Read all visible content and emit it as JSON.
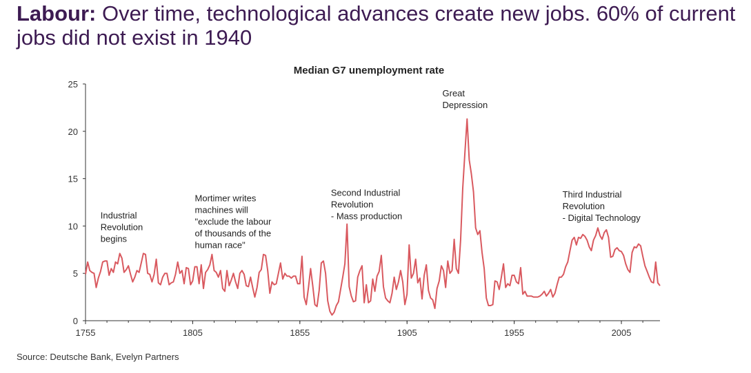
{
  "headline": {
    "prefix": "Labour:",
    "text": "Over time, technological advances create new jobs. 60% of current jobs did not exist in 1940"
  },
  "source": "Source: Deutsche Bank, Evelyn Partners",
  "colors": {
    "line": "#d9595f",
    "headline": "#3d1b52",
    "axis": "#333333"
  },
  "chart_data": {
    "type": "line",
    "title": "Median G7 unemployment rate",
    "xlabel": "",
    "ylabel": "",
    "xlim": [
      1755,
      2023
    ],
    "ylim": [
      0,
      25
    ],
    "xticks": [
      1755,
      1805,
      1855,
      1905,
      1955,
      2005
    ],
    "yticks": [
      0,
      5,
      10,
      15,
      20,
      25
    ],
    "grid": false,
    "legend": "none",
    "annotations": [
      {
        "text": [
          "Industrial",
          "Revolution",
          "begins"
        ],
        "x": 1762,
        "y": 10.8
      },
      {
        "text": [
          "Mortimer writes",
          "machines will",
          "\"exclude the labour",
          "of thousands of the",
          "human race\""
        ],
        "x": 1806,
        "y": 12.6
      },
      {
        "text": [
          " Second Industrial",
          "Revolution",
          "- Mass production"
        ],
        "x": 1869.5,
        "y": 13.2
      },
      {
        "text": [
          "Great",
          "Depression"
        ],
        "x": 1921.5,
        "y": 23.7
      },
      {
        "text": [
          " Third Industrial",
          "Revolution",
          "- Digital Technology"
        ],
        "x": 1977.5,
        "y": 13.0
      }
    ],
    "series": [
      {
        "values": [
          [
            1755,
            4.9
          ],
          [
            1756,
            6.2
          ],
          [
            1757,
            5.3
          ],
          [
            1758,
            5.1
          ],
          [
            1759,
            5.0
          ],
          [
            1760,
            3.5
          ],
          [
            1761,
            4.5
          ],
          [
            1762,
            5.2
          ],
          [
            1763,
            6.2
          ],
          [
            1764,
            6.3
          ],
          [
            1765,
            6.3
          ],
          [
            1766,
            4.8
          ],
          [
            1767,
            5.5
          ],
          [
            1768,
            5.1
          ],
          [
            1769,
            6.2
          ],
          [
            1770,
            6.0
          ],
          [
            1771,
            7.1
          ],
          [
            1772,
            6.6
          ],
          [
            1773,
            5.1
          ],
          [
            1774,
            5.4
          ],
          [
            1775,
            5.8
          ],
          [
            1776,
            4.9
          ],
          [
            1777,
            4.1
          ],
          [
            1778,
            4.6
          ],
          [
            1779,
            5.3
          ],
          [
            1780,
            5.1
          ],
          [
            1781,
            6.1
          ],
          [
            1782,
            7.1
          ],
          [
            1783,
            7.0
          ],
          [
            1784,
            5.0
          ],
          [
            1785,
            4.9
          ],
          [
            1786,
            4.1
          ],
          [
            1787,
            4.9
          ],
          [
            1788,
            6.5
          ],
          [
            1789,
            4.0
          ],
          [
            1790,
            3.8
          ],
          [
            1791,
            4.6
          ],
          [
            1792,
            5.0
          ],
          [
            1793,
            5.0
          ],
          [
            1794,
            3.8
          ],
          [
            1795,
            4.0
          ],
          [
            1796,
            4.1
          ],
          [
            1797,
            4.9
          ],
          [
            1798,
            6.2
          ],
          [
            1799,
            5.0
          ],
          [
            1800,
            5.3
          ],
          [
            1801,
            3.9
          ],
          [
            1802,
            5.6
          ],
          [
            1803,
            5.5
          ],
          [
            1804,
            3.8
          ],
          [
            1805,
            4.2
          ],
          [
            1806,
            5.7
          ],
          [
            1807,
            5.7
          ],
          [
            1808,
            3.9
          ],
          [
            1809,
            5.9
          ],
          [
            1810,
            3.4
          ],
          [
            1811,
            5.1
          ],
          [
            1812,
            5.4
          ],
          [
            1813,
            5.9
          ],
          [
            1814,
            7.0
          ],
          [
            1815,
            5.3
          ],
          [
            1816,
            5.1
          ],
          [
            1817,
            4.6
          ],
          [
            1818,
            5.3
          ],
          [
            1819,
            3.4
          ],
          [
            1820,
            3.1
          ],
          [
            1821,
            5.3
          ],
          [
            1822,
            3.7
          ],
          [
            1823,
            4.3
          ],
          [
            1824,
            5.0
          ],
          [
            1825,
            4.1
          ],
          [
            1826,
            3.4
          ],
          [
            1827,
            5.0
          ],
          [
            1828,
            5.3
          ],
          [
            1829,
            4.9
          ],
          [
            1830,
            3.7
          ],
          [
            1831,
            3.6
          ],
          [
            1832,
            4.6
          ],
          [
            1833,
            3.5
          ],
          [
            1834,
            2.5
          ],
          [
            1835,
            3.5
          ],
          [
            1836,
            5.1
          ],
          [
            1837,
            5.4
          ],
          [
            1838,
            7.0
          ],
          [
            1839,
            6.9
          ],
          [
            1840,
            5.3
          ],
          [
            1841,
            2.9
          ],
          [
            1842,
            4.1
          ],
          [
            1843,
            3.8
          ],
          [
            1844,
            3.9
          ],
          [
            1845,
            5.0
          ],
          [
            1846,
            6.1
          ],
          [
            1847,
            4.4
          ],
          [
            1848,
            5.0
          ],
          [
            1849,
            4.7
          ],
          [
            1850,
            4.7
          ],
          [
            1851,
            4.5
          ],
          [
            1852,
            4.7
          ],
          [
            1853,
            4.7
          ],
          [
            1854,
            3.9
          ],
          [
            1855,
            3.9
          ],
          [
            1856,
            6.8
          ],
          [
            1857,
            2.5
          ],
          [
            1858,
            1.7
          ],
          [
            1859,
            3.5
          ],
          [
            1860,
            5.5
          ],
          [
            1861,
            3.7
          ],
          [
            1862,
            1.7
          ],
          [
            1863,
            1.5
          ],
          [
            1864,
            3.2
          ],
          [
            1865,
            6.1
          ],
          [
            1866,
            6.3
          ],
          [
            1867,
            5.0
          ],
          [
            1868,
            2.1
          ],
          [
            1869,
            1.0
          ],
          [
            1870,
            0.6
          ],
          [
            1871,
            0.9
          ],
          [
            1872,
            1.6
          ],
          [
            1873,
            2.0
          ],
          [
            1874,
            3.3
          ],
          [
            1875,
            4.6
          ],
          [
            1876,
            6.0
          ],
          [
            1877,
            10.2
          ],
          [
            1878,
            3.6
          ],
          [
            1879,
            2.6
          ],
          [
            1880,
            2.0
          ],
          [
            1881,
            2.1
          ],
          [
            1882,
            4.6
          ],
          [
            1883,
            5.3
          ],
          [
            1884,
            5.8
          ],
          [
            1885,
            1.9
          ],
          [
            1886,
            3.8
          ],
          [
            1887,
            1.9
          ],
          [
            1888,
            2.1
          ],
          [
            1889,
            4.4
          ],
          [
            1890,
            3.1
          ],
          [
            1891,
            4.7
          ],
          [
            1892,
            5.2
          ],
          [
            1893,
            6.9
          ],
          [
            1894,
            3.6
          ],
          [
            1895,
            2.4
          ],
          [
            1896,
            2.1
          ],
          [
            1897,
            1.9
          ],
          [
            1898,
            2.9
          ],
          [
            1899,
            4.6
          ],
          [
            1900,
            3.3
          ],
          [
            1901,
            4.1
          ],
          [
            1902,
            5.3
          ],
          [
            1903,
            4.1
          ],
          [
            1904,
            1.7
          ],
          [
            1905,
            2.8
          ],
          [
            1906,
            8.0
          ],
          [
            1907,
            4.5
          ],
          [
            1908,
            5.0
          ],
          [
            1909,
            6.5
          ],
          [
            1910,
            4.0
          ],
          [
            1911,
            4.5
          ],
          [
            1912,
            2.3
          ],
          [
            1913,
            4.8
          ],
          [
            1914,
            5.9
          ],
          [
            1915,
            3.2
          ],
          [
            1916,
            2.4
          ],
          [
            1917,
            2.2
          ],
          [
            1918,
            1.3
          ],
          [
            1919,
            3.4
          ],
          [
            1920,
            4.2
          ],
          [
            1921,
            5.8
          ],
          [
            1922,
            5.3
          ],
          [
            1923,
            3.5
          ],
          [
            1924,
            6.3
          ],
          [
            1925,
            5.0
          ],
          [
            1926,
            5.3
          ],
          [
            1927,
            8.6
          ],
          [
            1928,
            5.5
          ],
          [
            1929,
            5.0
          ],
          [
            1930,
            8.5
          ],
          [
            1931,
            14.0
          ],
          [
            1932,
            17.8
          ],
          [
            1933,
            21.3
          ],
          [
            1934,
            17.0
          ],
          [
            1935,
            15.5
          ],
          [
            1936,
            13.6
          ],
          [
            1937,
            9.8
          ],
          [
            1938,
            9.1
          ],
          [
            1939,
            9.5
          ],
          [
            1940,
            7.2
          ],
          [
            1941,
            5.5
          ],
          [
            1942,
            2.4
          ],
          [
            1943,
            1.6
          ],
          [
            1944,
            1.6
          ],
          [
            1945,
            1.7
          ],
          [
            1946,
            4.2
          ],
          [
            1947,
            4.1
          ],
          [
            1948,
            3.3
          ],
          [
            1949,
            4.6
          ],
          [
            1950,
            6.0
          ],
          [
            1951,
            3.5
          ],
          [
            1952,
            3.9
          ],
          [
            1953,
            3.7
          ],
          [
            1954,
            4.8
          ],
          [
            1955,
            4.8
          ],
          [
            1956,
            4.1
          ],
          [
            1957,
            3.9
          ],
          [
            1958,
            5.6
          ],
          [
            1959,
            2.8
          ],
          [
            1960,
            3.1
          ],
          [
            1961,
            2.6
          ],
          [
            1962,
            2.6
          ],
          [
            1963,
            2.6
          ],
          [
            1964,
            2.5
          ],
          [
            1965,
            2.5
          ],
          [
            1966,
            2.5
          ],
          [
            1967,
            2.6
          ],
          [
            1968,
            2.8
          ],
          [
            1969,
            3.1
          ],
          [
            1970,
            2.6
          ],
          [
            1971,
            2.9
          ],
          [
            1972,
            3.3
          ],
          [
            1973,
            2.5
          ],
          [
            1974,
            2.9
          ],
          [
            1975,
            3.8
          ],
          [
            1976,
            4.6
          ],
          [
            1977,
            4.6
          ],
          [
            1978,
            4.9
          ],
          [
            1979,
            5.7
          ],
          [
            1980,
            6.2
          ],
          [
            1981,
            7.4
          ],
          [
            1982,
            8.5
          ],
          [
            1983,
            8.8
          ],
          [
            1984,
            8.0
          ],
          [
            1985,
            8.8
          ],
          [
            1986,
            8.7
          ],
          [
            1987,
            9.1
          ],
          [
            1988,
            8.9
          ],
          [
            1989,
            8.5
          ],
          [
            1990,
            7.8
          ],
          [
            1991,
            7.4
          ],
          [
            1992,
            8.5
          ],
          [
            1993,
            9.0
          ],
          [
            1994,
            9.8
          ],
          [
            1995,
            9.0
          ],
          [
            1996,
            8.6
          ],
          [
            1997,
            9.3
          ],
          [
            1998,
            9.6
          ],
          [
            1999,
            8.8
          ],
          [
            2000,
            6.7
          ],
          [
            2001,
            6.8
          ],
          [
            2002,
            7.5
          ],
          [
            2003,
            7.7
          ],
          [
            2004,
            7.4
          ],
          [
            2005,
            7.3
          ],
          [
            2006,
            6.9
          ],
          [
            2007,
            6.0
          ],
          [
            2008,
            5.4
          ],
          [
            2009,
            5.1
          ],
          [
            2010,
            7.2
          ],
          [
            2011,
            7.8
          ],
          [
            2012,
            7.7
          ],
          [
            2013,
            8.1
          ],
          [
            2014,
            7.9
          ],
          [
            2015,
            6.8
          ],
          [
            2016,
            5.8
          ],
          [
            2017,
            5.2
          ],
          [
            2018,
            4.6
          ],
          [
            2019,
            4.1
          ],
          [
            2020,
            4.0
          ],
          [
            2021,
            6.2
          ],
          [
            2022,
            4.0
          ],
          [
            2023,
            3.7
          ]
        ]
      }
    ]
  }
}
